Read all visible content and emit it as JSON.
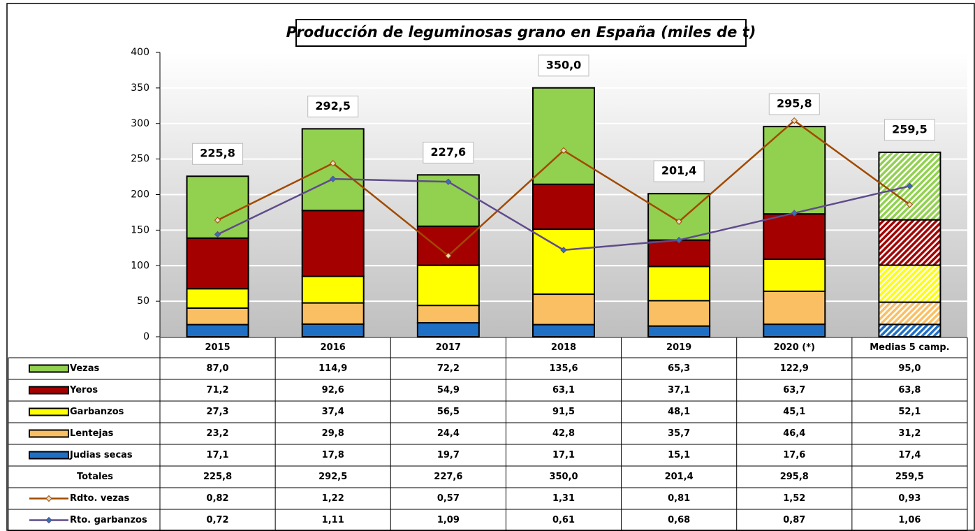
{
  "chart_data": {
    "type": "bar",
    "stacked": true,
    "title": "Producción de leguminosas grano en España  (miles de t)",
    "categories": [
      "2015",
      "2016",
      "2017",
      "2018",
      "2019",
      "2020 (*)",
      "Medias 5 camp."
    ],
    "hatched": [
      false,
      false,
      false,
      false,
      false,
      false,
      true
    ],
    "ylim": [
      0,
      400
    ],
    "yticks": [
      0,
      50,
      100,
      150,
      200,
      250,
      300,
      350,
      400
    ],
    "grid": true,
    "y2lim": [
      0,
      2
    ],
    "series": [
      {
        "name": "Vezas",
        "color": "#92d050",
        "values": [
          87.0,
          114.9,
          72.2,
          135.6,
          65.3,
          122.9,
          95.0
        ],
        "value_labels": [
          "87,0",
          "114,9",
          "72,2",
          "135,6",
          "65,3",
          "122,9",
          "95,0"
        ]
      },
      {
        "name": "Yeros",
        "color": "#a50000",
        "values": [
          71.2,
          92.6,
          54.9,
          63.1,
          37.1,
          63.7,
          63.8
        ],
        "value_labels": [
          "71,2",
          "92,6",
          "54,9",
          "63,1",
          "37,1",
          "63,7",
          "63,8"
        ]
      },
      {
        "name": "Garbanzos",
        "color": "#ffff00",
        "values": [
          27.3,
          37.4,
          56.5,
          91.5,
          48.1,
          45.1,
          52.1
        ],
        "value_labels": [
          "27,3",
          "37,4",
          "56,5",
          "91,5",
          "48,1",
          "45,1",
          "52,1"
        ]
      },
      {
        "name": "Lentejas",
        "color": "#fbbf63",
        "values": [
          23.2,
          29.8,
          24.4,
          42.8,
          35.7,
          46.4,
          31.2
        ],
        "value_labels": [
          "23,2",
          "29,8",
          "24,4",
          "42,8",
          "35,7",
          "46,4",
          "31,2"
        ]
      },
      {
        "name": "Judias secas",
        "color": "#1f6fc5",
        "values": [
          17.1,
          17.8,
          19.7,
          17.1,
          15.1,
          17.6,
          17.4
        ],
        "value_labels": [
          "17,1",
          "17,8",
          "19,7",
          "17,1",
          "15,1",
          "17,6",
          "17,4"
        ]
      }
    ],
    "totals": {
      "name": "Totales",
      "values": [
        225.8,
        292.5,
        227.6,
        350.0,
        201.4,
        295.8,
        259.5
      ],
      "value_labels": [
        "225,8",
        "292,5",
        "227,6",
        "350,0",
        "201,4",
        "295,8",
        "259,5"
      ]
    },
    "lines": [
      {
        "name": "Rdto. vezas",
        "type": "line",
        "axis": "y2",
        "color": "#a04a00",
        "marker_fill": "#e8dcc0",
        "values": [
          0.82,
          1.22,
          0.57,
          1.31,
          0.81,
          1.52,
          0.93
        ],
        "value_labels": [
          "0,82",
          "1,22",
          "0,57",
          "1,31",
          "0,81",
          "1,52",
          "0,93"
        ]
      },
      {
        "name": "Rto. garbanzos",
        "type": "line",
        "axis": "y2",
        "color": "#5f4b8b",
        "marker_fill": "#2e75b6",
        "values": [
          0.72,
          1.11,
          1.09,
          0.61,
          0.68,
          0.87,
          1.06
        ],
        "value_labels": [
          "0,72",
          "1,11",
          "1,09",
          "0,61",
          "0,68",
          "0,87",
          "1,06"
        ]
      }
    ]
  }
}
